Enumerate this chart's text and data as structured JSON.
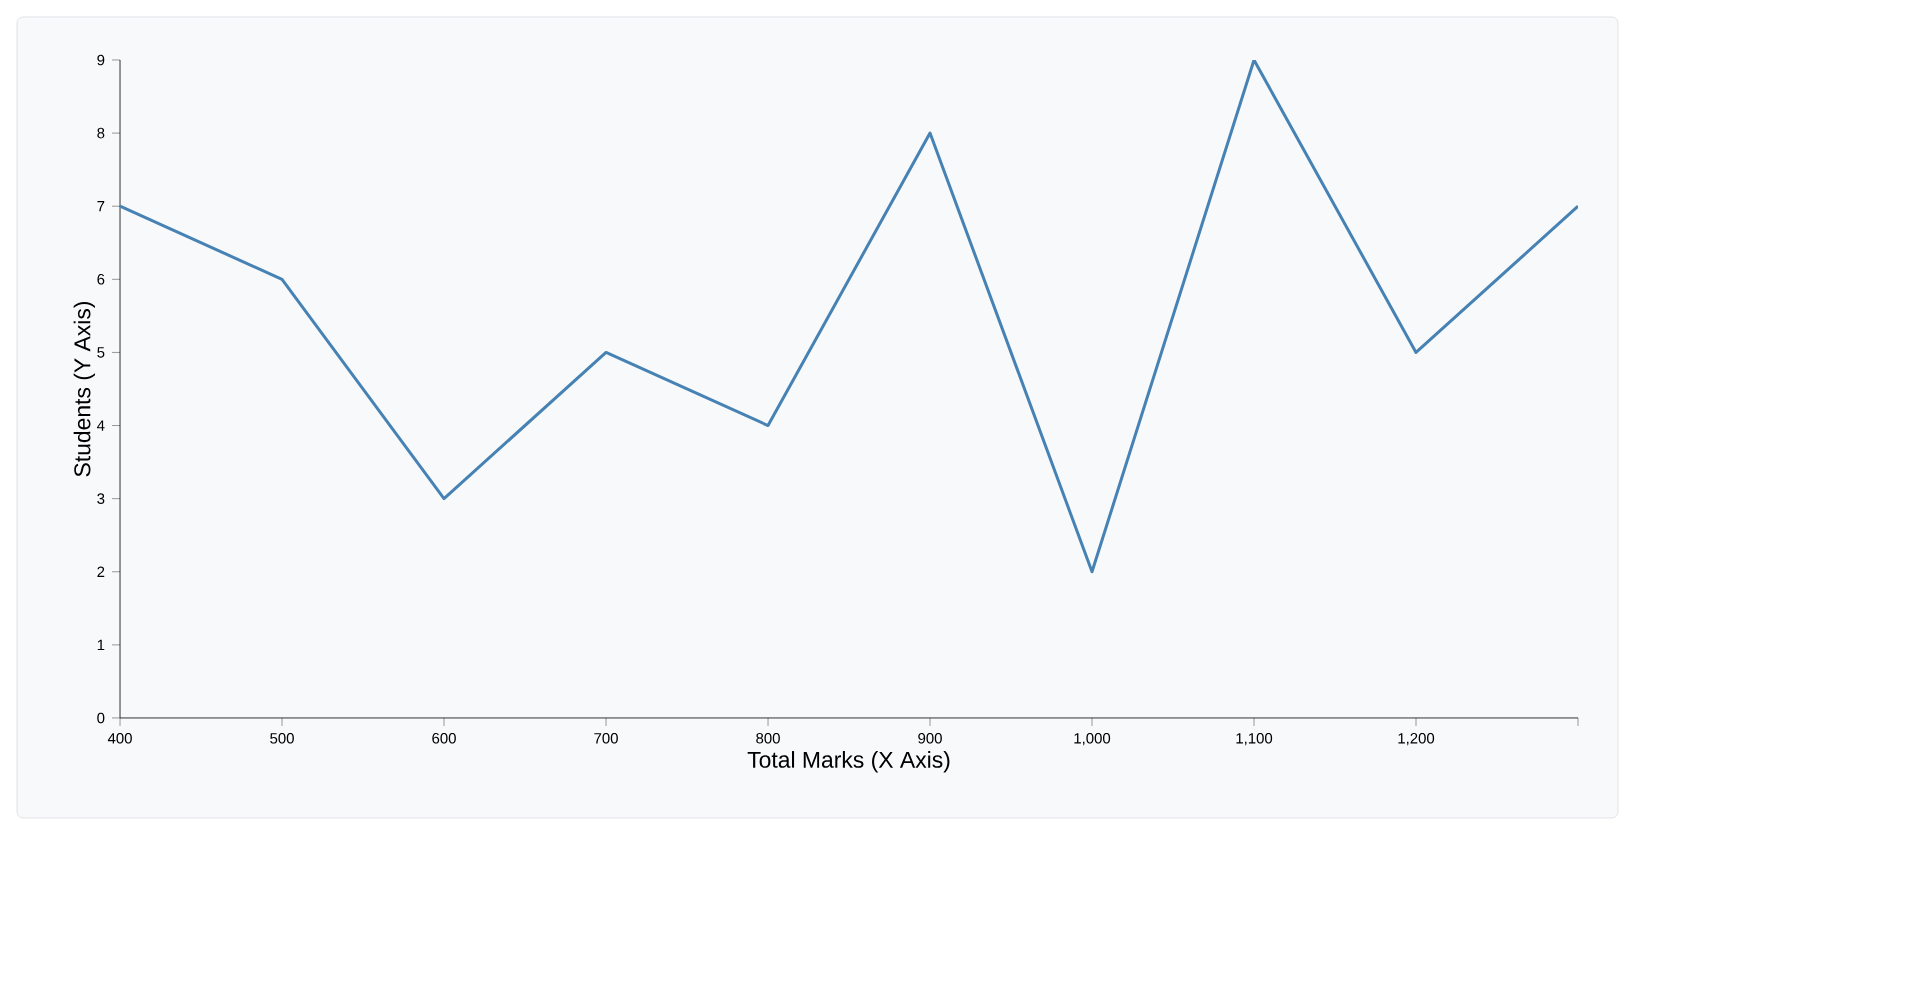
{
  "chart_data": {
    "type": "line",
    "xlabel": "Total Marks (X Axis)",
    "ylabel": "Students (Y Axis)",
    "x": [
      400,
      500,
      600,
      700,
      800,
      900,
      1000,
      1100,
      1200,
      1300
    ],
    "values": [
      7,
      6,
      3,
      5,
      4,
      8,
      2,
      9,
      5,
      7
    ],
    "color": "#4682b4",
    "xlim": [
      400,
      1300
    ],
    "xticks": [
      400,
      500,
      600,
      700,
      800,
      900,
      {
        "value": 1000,
        "label": "1,000"
      },
      {
        "value": 1100,
        "label": "1,100"
      },
      {
        "value": 1200,
        "label": "1,200"
      },
      {
        "value": 1300,
        "label": null
      }
    ],
    "ylim": [
      0,
      9
    ],
    "yticks": [
      0,
      1,
      2,
      3,
      4,
      5,
      6,
      7,
      8,
      9
    ],
    "grid": false,
    "marker": "none",
    "line_style": "solid"
  }
}
